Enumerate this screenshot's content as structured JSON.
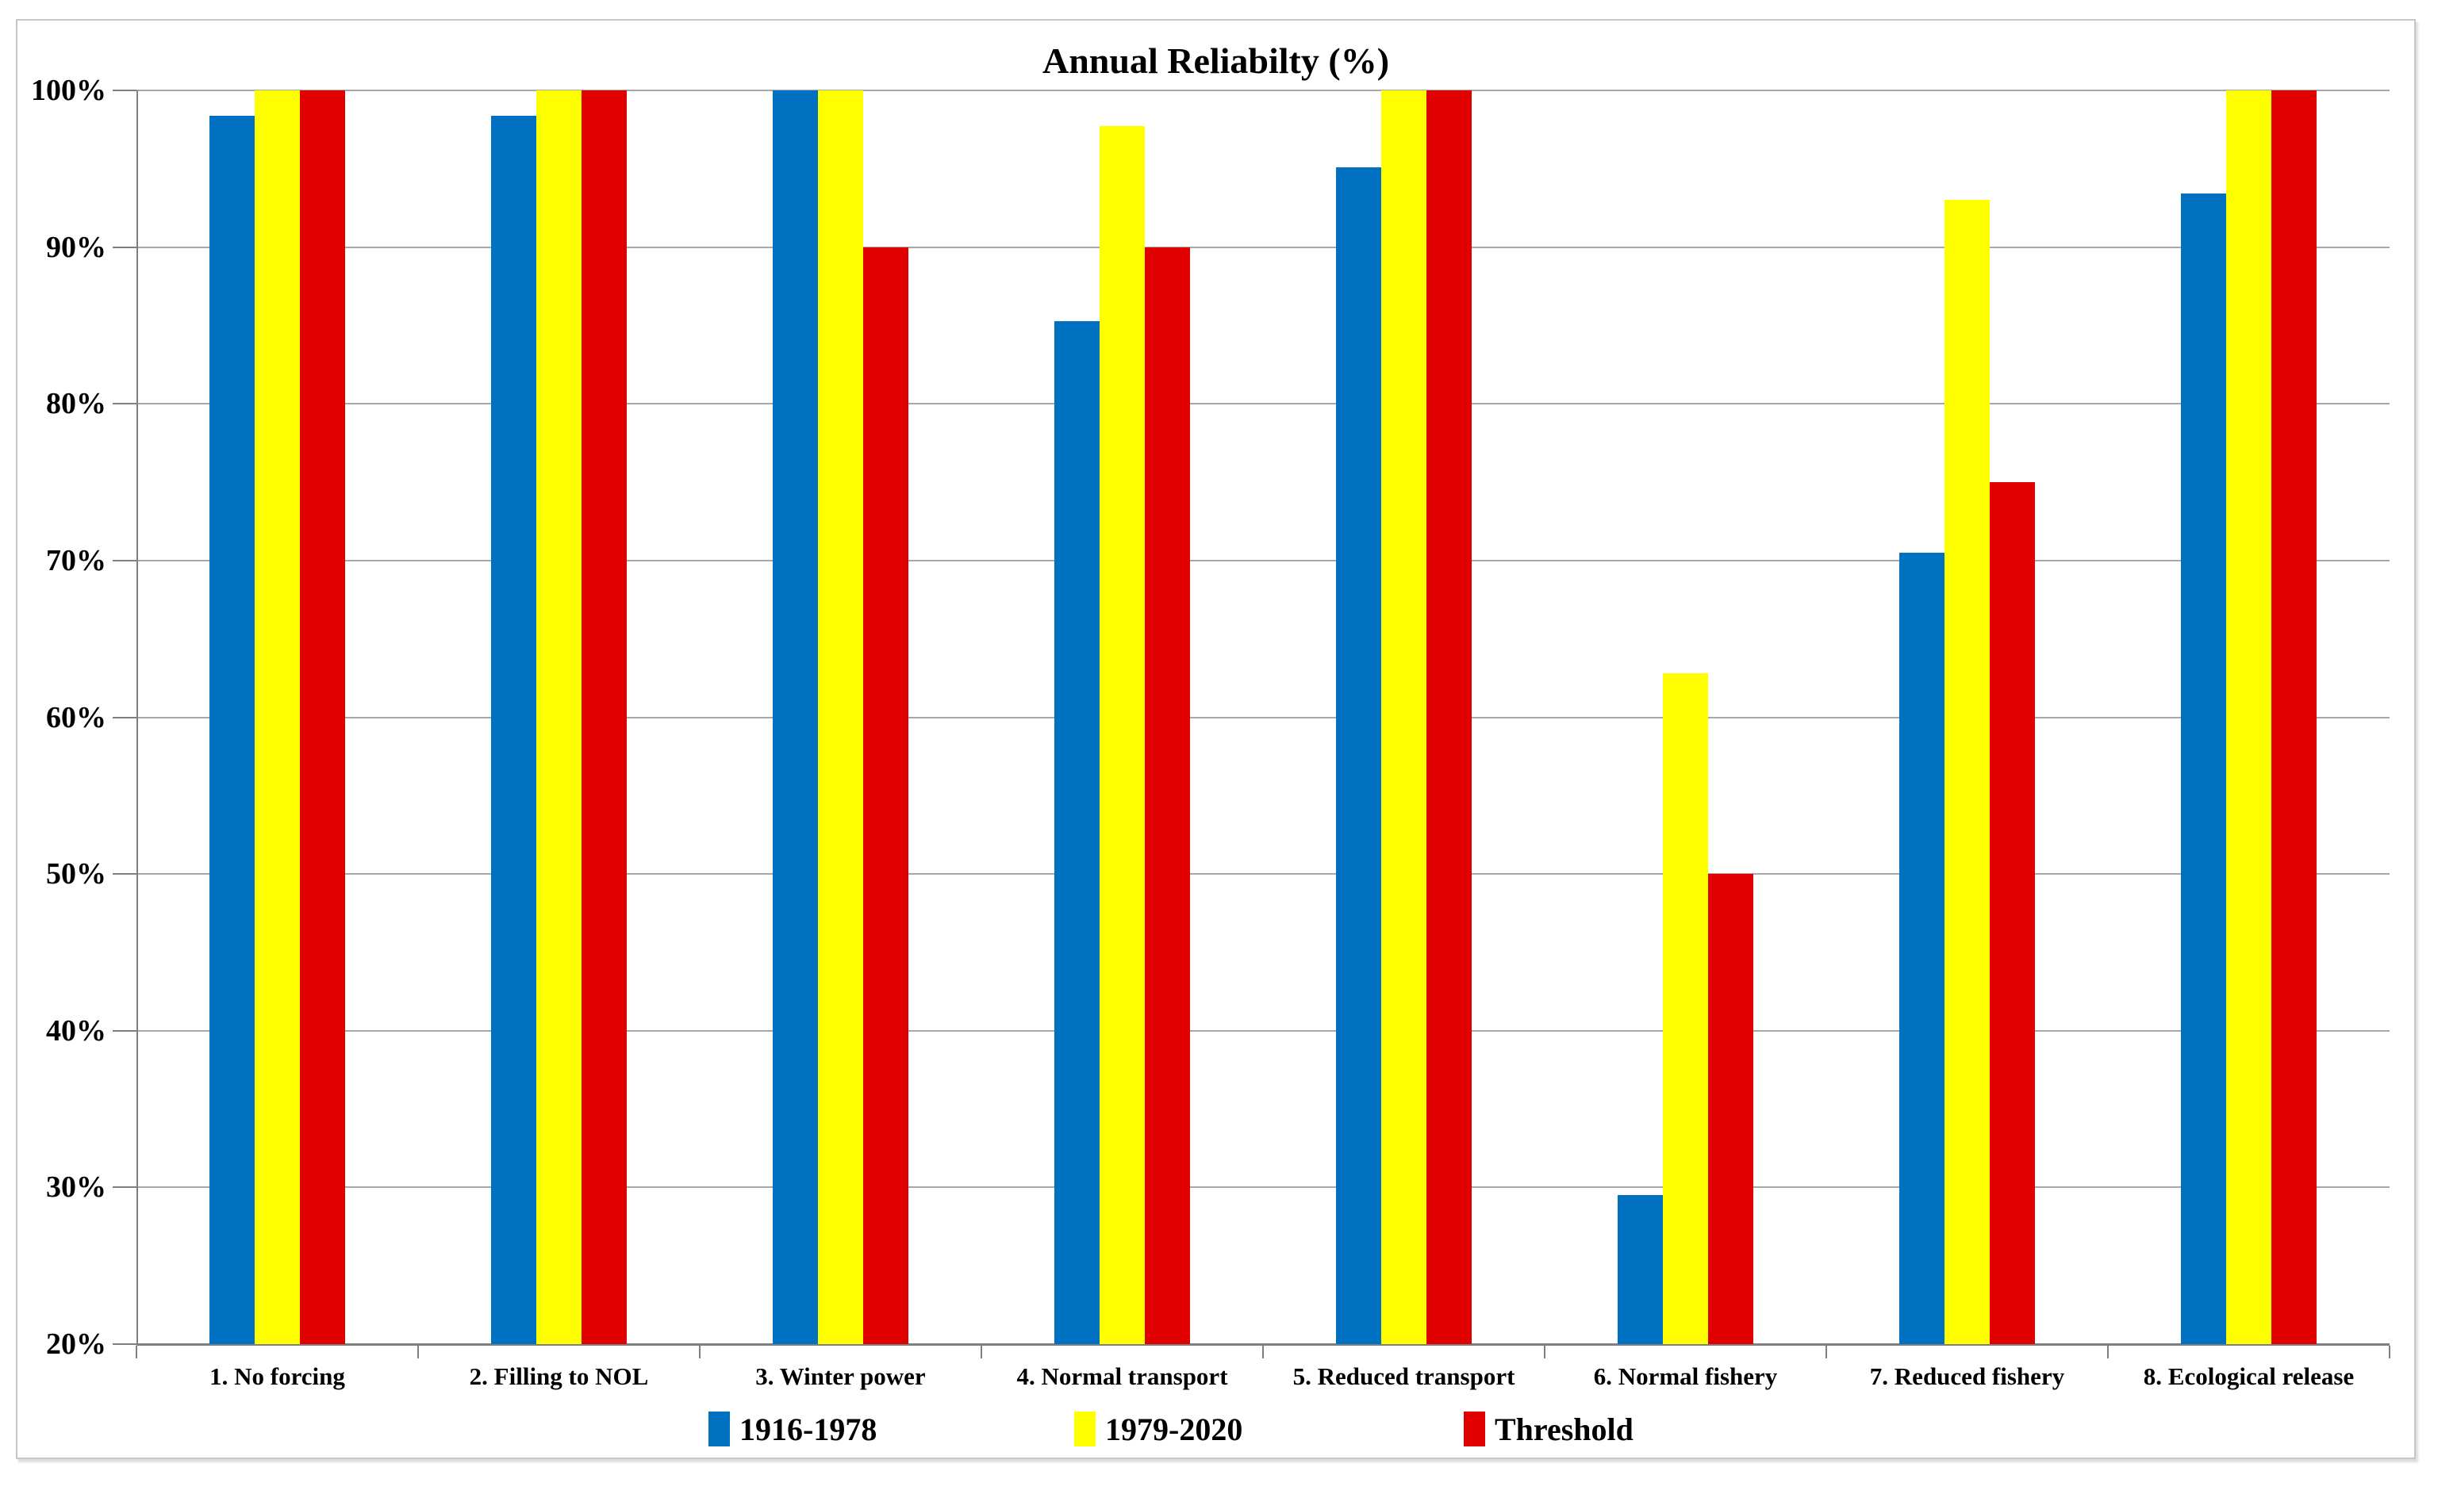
{
  "chart_data": {
    "type": "bar",
    "title": "Annual Reliabilty (%)",
    "categories": [
      "1. No forcing",
      "2. Filling to NOL",
      "3. Winter power",
      "4. Normal transport",
      "5. Reduced transport",
      "6. Normal fishery",
      "7. Reduced fishery",
      "8. Ecological release"
    ],
    "series": [
      {
        "name": "1916-1978",
        "color": "#0070C0",
        "values": [
          98.4,
          98.4,
          100,
          85.3,
          95.1,
          29.5,
          70.5,
          93.4
        ]
      },
      {
        "name": "1979-2020",
        "color": "#FFFF00",
        "values": [
          100,
          100,
          100,
          97.7,
          100,
          62.8,
          93,
          100
        ]
      },
      {
        "name": "Threshold",
        "color": "#E00000",
        "values": [
          100,
          100,
          90,
          90,
          100,
          50,
          75,
          100
        ]
      }
    ],
    "ylabel": "",
    "xlabel": "",
    "ylim": [
      20,
      100
    ],
    "ytick_step": 10,
    "ytick_labels": [
      "100%",
      "90%",
      "80%",
      "70%",
      "60%",
      "50%",
      "40%",
      "30%",
      "20%"
    ],
    "grid": true,
    "legend_position": "bottom",
    "grid_color": "#A8A8A8",
    "axis_color": "#7F7F7F",
    "border_color": "#C6C6C6",
    "background_color": "#FFFFFF"
  }
}
